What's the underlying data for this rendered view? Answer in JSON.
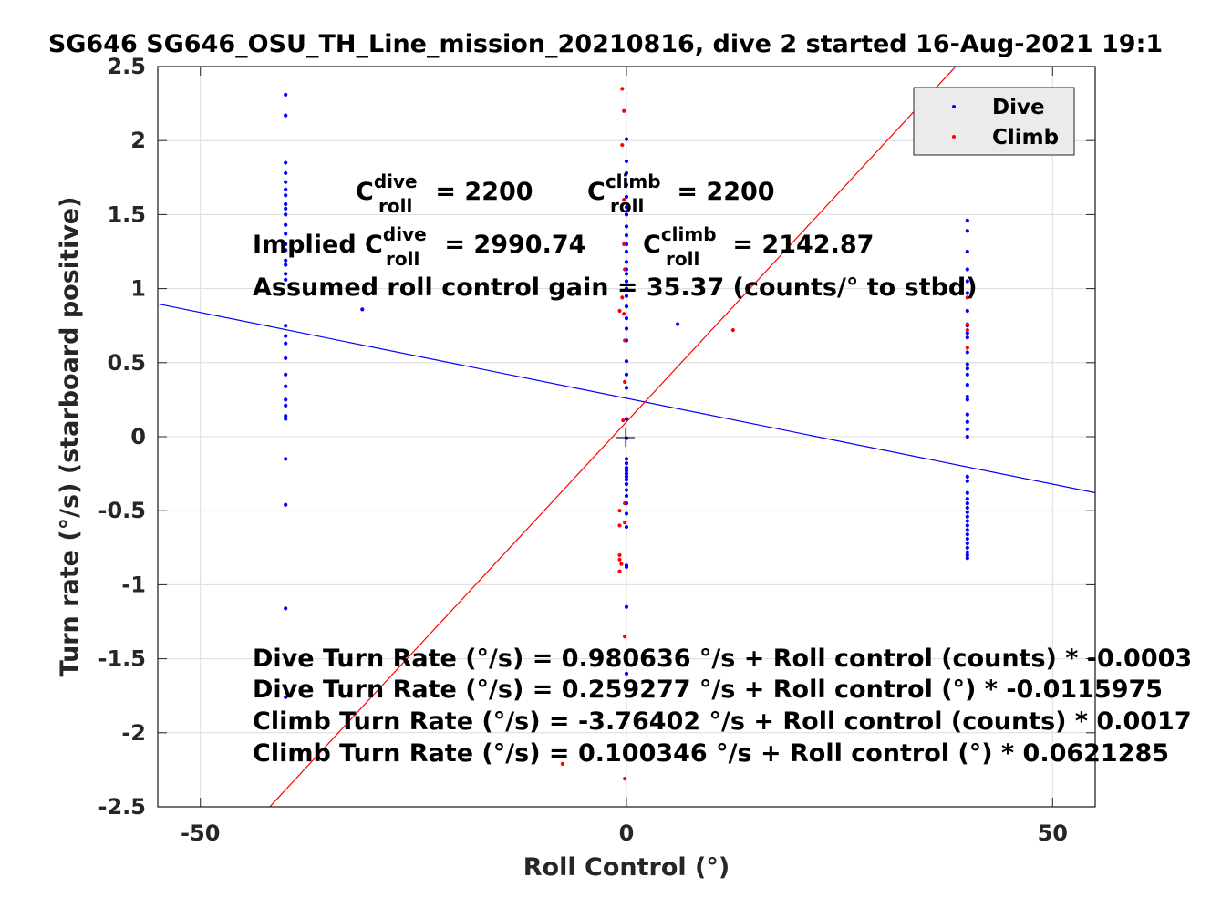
{
  "chart_data": {
    "type": "scatter",
    "title": "SG646 SG646_OSU_TH_Line_mission_20210816, dive 2 started 16-Aug-2021 19:1",
    "xlabel": "Roll Control (°)",
    "ylabel": "Turn rate (°/s) (starboard positive)",
    "xlim": [
      -55,
      55
    ],
    "ylim": [
      -2.5,
      2.5
    ],
    "xticks": [
      -50,
      0,
      50
    ],
    "xtick_labels": [
      "-50",
      "0",
      "50"
    ],
    "yticks": [
      2.5,
      2,
      1.5,
      1,
      0.5,
      0,
      -0.5,
      -1,
      -1.5,
      -2,
      -2.5
    ],
    "ytick_labels": [
      "2.5",
      "2",
      "1.5",
      "1",
      "0.5",
      "0",
      "-0.5",
      "-1",
      "-1.5",
      "-2",
      "-2.5"
    ],
    "grid": true,
    "legend_position": "top-right",
    "series": [
      {
        "name": "Dive",
        "color": "#0000ff",
        "points": [
          [
            -40,
            2.31
          ],
          [
            -40,
            2.17
          ],
          [
            -40,
            1.85
          ],
          [
            -40,
            1.78
          ],
          [
            -40,
            1.72
          ],
          [
            -40,
            1.67
          ],
          [
            -40,
            1.63
          ],
          [
            -40,
            1.57
          ],
          [
            -40,
            1.54
          ],
          [
            -40,
            1.5
          ],
          [
            -40,
            1.43
          ],
          [
            -40,
            1.37
          ],
          [
            -40,
            1.3
          ],
          [
            -40,
            1.26
          ],
          [
            -40,
            1.19
          ],
          [
            -40,
            1.16
          ],
          [
            -40,
            1.1
          ],
          [
            -40,
            1.06
          ],
          [
            -40,
            0.75
          ],
          [
            -40,
            0.68
          ],
          [
            -40,
            0.63
          ],
          [
            -40,
            0.53
          ],
          [
            -40,
            0.42
          ],
          [
            -40,
            0.34
          ],
          [
            -40,
            0.25
          ],
          [
            -40,
            0.21
          ],
          [
            -40,
            0.14
          ],
          [
            -40,
            0.12
          ],
          [
            -40,
            -0.15
          ],
          [
            -40,
            -0.46
          ],
          [
            -40,
            -1.16
          ],
          [
            -40,
            -1.76
          ],
          [
            -31,
            0.86
          ],
          [
            0,
            2.01
          ],
          [
            0,
            1.86
          ],
          [
            0,
            1.78
          ],
          [
            0,
            1.7
          ],
          [
            0,
            1.62
          ],
          [
            0,
            1.55
          ],
          [
            0,
            1.5
          ],
          [
            0,
            1.42
          ],
          [
            0,
            1.36
          ],
          [
            0,
            1.3
          ],
          [
            0,
            1.25
          ],
          [
            0,
            1.18
          ],
          [
            0,
            1.13
          ],
          [
            0,
            1.1
          ],
          [
            0,
            1.05
          ],
          [
            0,
            1.0
          ],
          [
            0,
            0.95
          ],
          [
            0,
            0.88
          ],
          [
            0,
            0.8
          ],
          [
            0,
            0.73
          ],
          [
            0,
            0.65
          ],
          [
            0,
            0.51
          ],
          [
            0,
            0.42
          ],
          [
            0,
            0.33
          ],
          [
            0,
            0.12
          ],
          [
            0,
            -0.01
          ],
          [
            0,
            -0.15
          ],
          [
            0,
            -0.18
          ],
          [
            0,
            -0.21
          ],
          [
            0,
            -0.23
          ],
          [
            0,
            -0.25
          ],
          [
            0,
            -0.27
          ],
          [
            0,
            -0.29
          ],
          [
            0,
            -0.32
          ],
          [
            0,
            -0.36
          ],
          [
            0,
            -0.4
          ],
          [
            0,
            -0.45
          ],
          [
            0,
            -0.52
          ],
          [
            0,
            -0.61
          ],
          [
            0,
            -0.87
          ],
          [
            0,
            -0.88
          ],
          [
            0,
            -1.15
          ],
          [
            0,
            -1.6
          ],
          [
            0,
            -1.9
          ],
          [
            6,
            0.76
          ],
          [
            40,
            1.46
          ],
          [
            40,
            1.39
          ],
          [
            40,
            1.25
          ],
          [
            40,
            1.13
          ],
          [
            40,
            1.05
          ],
          [
            40,
            0.97
          ],
          [
            40,
            0.85
          ],
          [
            40,
            0.75
          ],
          [
            40,
            0.7
          ],
          [
            40,
            0.67
          ],
          [
            40,
            0.57
          ],
          [
            40,
            0.49
          ],
          [
            40,
            0.46
          ],
          [
            40,
            0.42
          ],
          [
            40,
            0.35
          ],
          [
            40,
            0.27
          ],
          [
            40,
            0.25
          ],
          [
            40,
            0.15
          ],
          [
            40,
            0.1
          ],
          [
            40,
            0.05
          ],
          [
            40,
            0.0
          ],
          [
            40,
            -0.27
          ],
          [
            40,
            -0.3
          ],
          [
            40,
            -0.38
          ],
          [
            40,
            -0.42
          ],
          [
            40,
            -0.45
          ],
          [
            40,
            -0.48
          ],
          [
            40,
            -0.51
          ],
          [
            40,
            -0.54
          ],
          [
            40,
            -0.57
          ],
          [
            40,
            -0.6
          ],
          [
            40,
            -0.63
          ],
          [
            40,
            -0.66
          ],
          [
            40,
            -0.69
          ],
          [
            40,
            -0.72
          ],
          [
            40,
            -0.75
          ],
          [
            40,
            -0.78
          ],
          [
            40,
            -0.8
          ],
          [
            40,
            -0.82
          ]
        ]
      },
      {
        "name": "Climb",
        "color": "#ff0000",
        "points": [
          [
            -0.5,
            2.35
          ],
          [
            -0.3,
            2.2
          ],
          [
            -0.5,
            1.97
          ],
          [
            -0.3,
            1.6
          ],
          [
            -0.3,
            1.3
          ],
          [
            -0.2,
            1.13
          ],
          [
            -0.5,
            0.94
          ],
          [
            -0.8,
            0.85
          ],
          [
            -0.3,
            0.83
          ],
          [
            -0.2,
            0.65
          ],
          [
            -0.2,
            0.37
          ],
          [
            -0.4,
            0.11
          ],
          [
            -0.2,
            -0.45
          ],
          [
            -0.8,
            -0.5
          ],
          [
            -0.8,
            -0.6
          ],
          [
            -0.2,
            -0.58
          ],
          [
            -0.8,
            -0.8
          ],
          [
            -0.8,
            -0.83
          ],
          [
            -0.6,
            -0.86
          ],
          [
            -0.8,
            -0.91
          ],
          [
            -0.2,
            -1.35
          ],
          [
            -0.2,
            -2.31
          ],
          [
            -7.5,
            -2.21
          ],
          [
            12.5,
            0.72
          ],
          [
            40,
            0.94
          ],
          [
            40,
            0.76
          ],
          [
            40,
            0.72
          ],
          [
            40,
            0.6
          ]
        ]
      }
    ],
    "fit_lines": [
      {
        "name": "Dive fit",
        "color": "#0000ff",
        "intercept": 0.259277,
        "slope": -0.0115975
      },
      {
        "name": "Climb fit",
        "color": "#ff0000",
        "intercept": 0.100346,
        "slope": 0.0621285
      }
    ],
    "annotations": {
      "c_roll_dive_label": "C",
      "c_roll_dive_sup": "dive",
      "c_roll_dive_sub": "roll",
      "c_roll_dive_value": " = 2200",
      "c_roll_climb_label": "C",
      "c_roll_climb_sup": "climb",
      "c_roll_climb_sub": "roll",
      "c_roll_climb_value": " = 2200",
      "implied_prefix": "Implied C",
      "implied_dive_sup": "dive",
      "implied_dive_sub": "roll",
      "implied_dive_value": " = 2990.74",
      "implied_climb_label": "C",
      "implied_climb_sup": "climb",
      "implied_climb_sub": "roll",
      "implied_climb_value": " = 2142.87",
      "gain": "Assumed roll control gain = 35.37 (counts/° to stbd)",
      "eq1": "Dive Turn Rate (°/s) = 0.980636 °/s + Roll control (counts) * -0.0003",
      "eq2": "Dive Turn Rate (°/s) = 0.259277 °/s + Roll control (°) * -0.0115975",
      "eq3": "Climb Turn Rate (°/s) = -3.76402 °/s + Roll control (counts) * 0.0017",
      "eq4": "Climb Turn Rate (°/s) = 0.100346 °/s + Roll control (°) * 0.0621285"
    }
  }
}
